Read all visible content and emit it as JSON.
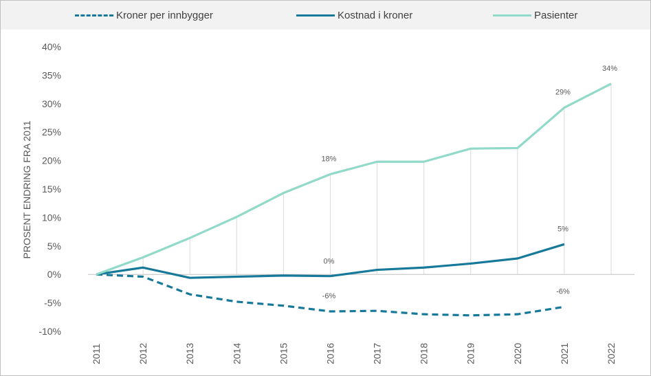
{
  "chart_data": {
    "type": "line",
    "title": "",
    "xlabel": "",
    "ylabel": "PROSENT ENDRING FRA 2011",
    "ylim": [
      -10,
      40
    ],
    "yticks": [
      40,
      35,
      30,
      25,
      20,
      15,
      10,
      5,
      0,
      -5,
      -10
    ],
    "ytick_labels": [
      "40%",
      "35%",
      "30%",
      "25%",
      "20%",
      "15%",
      "10%",
      "5%",
      "0%",
      "-5%",
      "-10%"
    ],
    "categories": [
      "2011",
      "2012",
      "2013",
      "2014",
      "2015",
      "2016",
      "2017",
      "2018",
      "2019",
      "2020",
      "2021",
      "2022"
    ],
    "legend_position": "top",
    "series": [
      {
        "name": "Kroner per innbygger",
        "color": "#17799a",
        "style": "dashed",
        "values": [
          0,
          -0.4,
          -3.5,
          -4.8,
          -5.5,
          -6.5,
          -6.4,
          -7.0,
          -7.2,
          -7.0,
          -5.7,
          null
        ]
      },
      {
        "name": "Kostnad i kroner",
        "color": "#17799a",
        "style": "solid",
        "values": [
          0,
          1.2,
          -0.6,
          -0.4,
          -0.2,
          -0.3,
          0.8,
          1.2,
          1.9,
          2.8,
          5.3,
          null
        ]
      },
      {
        "name": "Pasienter",
        "color": "#91d9c8",
        "style": "solid",
        "values": [
          0,
          3.0,
          6.4,
          10.1,
          14.3,
          17.6,
          19.8,
          19.8,
          22.1,
          22.2,
          29.3,
          33.5
        ]
      }
    ],
    "annotations": [
      {
        "series": 2,
        "category": "2016",
        "text": "18%"
      },
      {
        "series": 2,
        "category": "2021",
        "text": "29%"
      },
      {
        "series": 2,
        "category": "2022",
        "text": "34%"
      },
      {
        "series": 1,
        "category": "2016",
        "text": "0%"
      },
      {
        "series": 1,
        "category": "2021",
        "text": "5%"
      },
      {
        "series": 0,
        "category": "2016",
        "text": "-6%"
      },
      {
        "series": 0,
        "category": "2021",
        "text": "-6%"
      }
    ]
  }
}
